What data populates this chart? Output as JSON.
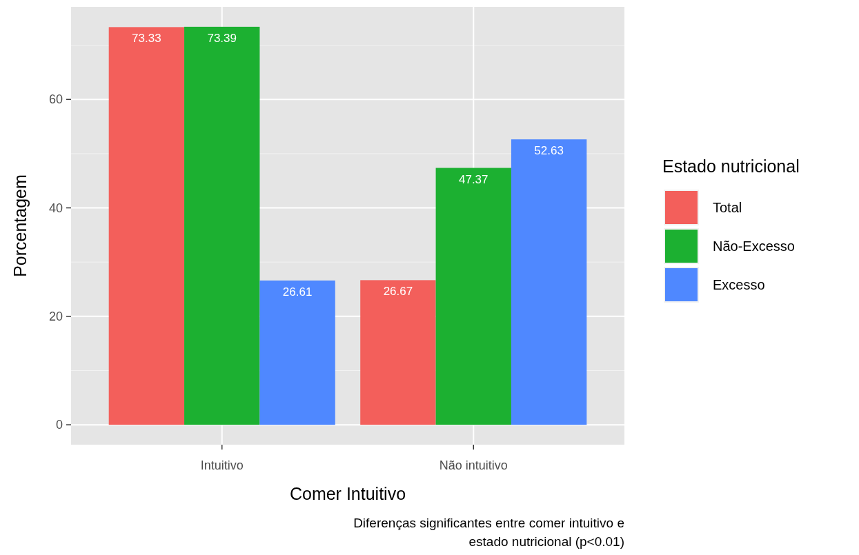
{
  "chart_data": {
    "type": "bar",
    "xlabel": "Comer Intuitivo",
    "ylabel": "Porcentagem",
    "legend_title": "Estado nutricional",
    "categories": [
      "Intuitivo",
      "Não intuitivo"
    ],
    "series": [
      {
        "name": "Total",
        "color": "#f35f5b",
        "values": [
          73.33,
          26.67
        ]
      },
      {
        "name": "Não-Excesso",
        "color": "#1cb031",
        "values": [
          73.39,
          47.37
        ]
      },
      {
        "name": "Excesso",
        "color": "#4f88ff",
        "values": [
          26.61,
          52.63
        ]
      }
    ],
    "ylim": [
      -3.67,
      77.06
    ],
    "yticks": [
      0,
      20,
      40,
      60
    ],
    "grid": true,
    "legend": "right",
    "data_labels": true,
    "annotations": [
      "Diferenças significantes entre comer intuitivo e\nestado nutricional (p<0.01)"
    ]
  }
}
